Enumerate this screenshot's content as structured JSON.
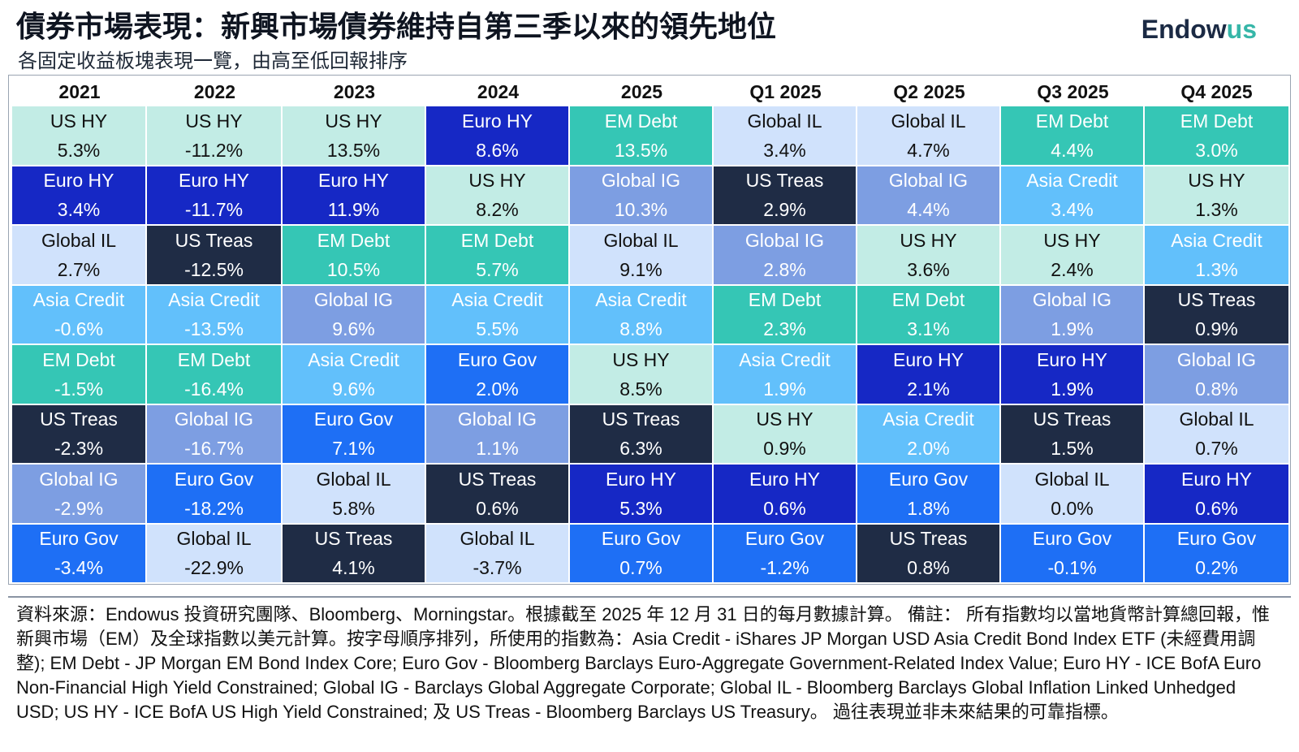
{
  "header": {
    "title": "債券市場表現：新興市場債券維持自第三季以來的領先地位",
    "subtitle": "各固定收益板塊表現一覽，由高至低回報排序",
    "logo_main": "Endow",
    "logo_accent": "us"
  },
  "colors": {
    "US HY": {
      "bg": "#c2ece5",
      "fg": "#111111"
    },
    "Euro HY": {
      "bg": "#1628c5",
      "fg": "#ffffff"
    },
    "Global IL": {
      "bg": "#d0e2fc",
      "fg": "#111111"
    },
    "Asia Credit": {
      "bg": "#62c0fb",
      "fg": "#ffffff"
    },
    "EM Debt": {
      "bg": "#35c6b5",
      "fg": "#ffffff"
    },
    "US Treas": {
      "bg": "#1f2c45",
      "fg": "#ffffff"
    },
    "Global IG": {
      "bg": "#7d9ee2",
      "fg": "#ffffff"
    },
    "Euro Gov": {
      "bg": "#1e6ff5",
      "fg": "#ffffff"
    }
  },
  "chart_data": {
    "type": "table",
    "title": "債券市場表現：新興市場債券維持自第三季以來的領先地位",
    "subtitle": "各固定收益板塊表現一覽，由高至低回報排序",
    "columns": [
      "2021",
      "2022",
      "2023",
      "2024",
      "2025",
      "Q1 2025",
      "Q2 2025",
      "Q3 2025",
      "Q4 2025"
    ],
    "series": [
      {
        "name": "2021",
        "cells": [
          {
            "label": "US HY",
            "value": "5.3%"
          },
          {
            "label": "Euro HY",
            "value": "3.4%"
          },
          {
            "label": "Global IL",
            "value": "2.7%"
          },
          {
            "label": "Asia Credit",
            "value": "-0.6%"
          },
          {
            "label": "EM Debt",
            "value": "-1.5%"
          },
          {
            "label": "US Treas",
            "value": "-2.3%"
          },
          {
            "label": "Global IG",
            "value": "-2.9%"
          },
          {
            "label": "Euro Gov",
            "value": "-3.4%"
          }
        ]
      },
      {
        "name": "2022",
        "cells": [
          {
            "label": "US HY",
            "value": "-11.2%"
          },
          {
            "label": "Euro HY",
            "value": "-11.7%"
          },
          {
            "label": "US Treas",
            "value": "-12.5%"
          },
          {
            "label": "Asia Credit",
            "value": "-13.5%"
          },
          {
            "label": "EM Debt",
            "value": "-16.4%"
          },
          {
            "label": "Global IG",
            "value": "-16.7%"
          },
          {
            "label": "Euro Gov",
            "value": "-18.2%"
          },
          {
            "label": "Global IL",
            "value": "-22.9%"
          }
        ]
      },
      {
        "name": "2023",
        "cells": [
          {
            "label": "US HY",
            "value": "13.5%"
          },
          {
            "label": "Euro HY",
            "value": "11.9%"
          },
          {
            "label": "EM Debt",
            "value": "10.5%"
          },
          {
            "label": "Global IG",
            "value": "9.6%"
          },
          {
            "label": "Asia Credit",
            "value": "9.6%"
          },
          {
            "label": "Euro Gov",
            "value": "7.1%"
          },
          {
            "label": "Global IL",
            "value": "5.8%"
          },
          {
            "label": "US Treas",
            "value": "4.1%"
          }
        ]
      },
      {
        "name": "2024",
        "cells": [
          {
            "label": "Euro HY",
            "value": "8.6%"
          },
          {
            "label": "US HY",
            "value": "8.2%"
          },
          {
            "label": "EM Debt",
            "value": "5.7%"
          },
          {
            "label": "Asia Credit",
            "value": "5.5%"
          },
          {
            "label": "Euro Gov",
            "value": "2.0%"
          },
          {
            "label": "Global IG",
            "value": "1.1%"
          },
          {
            "label": "US Treas",
            "value": "0.6%"
          },
          {
            "label": "Global IL",
            "value": "-3.7%"
          }
        ]
      },
      {
        "name": "2025",
        "cells": [
          {
            "label": "EM Debt",
            "value": "13.5%"
          },
          {
            "label": "Global IG",
            "value": "10.3%"
          },
          {
            "label": "Global IL",
            "value": "9.1%"
          },
          {
            "label": "Asia Credit",
            "value": "8.8%"
          },
          {
            "label": "US HY",
            "value": "8.5%"
          },
          {
            "label": "US Treas",
            "value": "6.3%"
          },
          {
            "label": "Euro HY",
            "value": "5.3%"
          },
          {
            "label": "Euro Gov",
            "value": "0.7%"
          }
        ]
      },
      {
        "name": "Q1 2025",
        "cells": [
          {
            "label": "Global IL",
            "value": "3.4%"
          },
          {
            "label": "US Treas",
            "value": "2.9%"
          },
          {
            "label": "Global IG",
            "value": "2.8%"
          },
          {
            "label": "EM Debt",
            "value": "2.3%"
          },
          {
            "label": "Asia Credit",
            "value": "1.9%"
          },
          {
            "label": "US HY",
            "value": "0.9%"
          },
          {
            "label": "Euro HY",
            "value": "0.6%"
          },
          {
            "label": "Euro Gov",
            "value": "-1.2%"
          }
        ]
      },
      {
        "name": "Q2 2025",
        "cells": [
          {
            "label": "Global IL",
            "value": "4.7%"
          },
          {
            "label": "Global IG",
            "value": "4.4%"
          },
          {
            "label": "US HY",
            "value": "3.6%"
          },
          {
            "label": "EM Debt",
            "value": "3.1%"
          },
          {
            "label": "Euro HY",
            "value": "2.1%"
          },
          {
            "label": "Asia Credit",
            "value": "2.0%"
          },
          {
            "label": "Euro Gov",
            "value": "1.8%"
          },
          {
            "label": "US Treas",
            "value": "0.8%"
          }
        ]
      },
      {
        "name": "Q3 2025",
        "cells": [
          {
            "label": "EM Debt",
            "value": "4.4%"
          },
          {
            "label": "Asia Credit",
            "value": "3.4%"
          },
          {
            "label": "US HY",
            "value": "2.4%"
          },
          {
            "label": "Global IG",
            "value": "1.9%"
          },
          {
            "label": "Euro HY",
            "value": "1.9%"
          },
          {
            "label": "US Treas",
            "value": "1.5%"
          },
          {
            "label": "Global IL",
            "value": "0.0%"
          },
          {
            "label": "Euro Gov",
            "value": "-0.1%"
          }
        ]
      },
      {
        "name": "Q4 2025",
        "cells": [
          {
            "label": "EM Debt",
            "value": "3.0%"
          },
          {
            "label": "US HY",
            "value": "1.3%"
          },
          {
            "label": "Asia Credit",
            "value": "1.3%"
          },
          {
            "label": "US Treas",
            "value": "0.9%"
          },
          {
            "label": "Global IG",
            "value": "0.8%"
          },
          {
            "label": "Global IL",
            "value": "0.7%"
          },
          {
            "label": "Euro HY",
            "value": "0.6%"
          },
          {
            "label": "Euro Gov",
            "value": "0.2%"
          }
        ]
      }
    ]
  },
  "footer": {
    "text": "資料來源：Endowus 投資研究團隊、Bloomberg、Morningstar。根據截至 2025 年 12 月 31 日的每月數據計算。 備註： 所有指數均以當地貨幣計算總回報，惟新興市場（EM）及全球指數以美元計算。按字母順序排列，所使用的指數為：Asia Credit - iShares JP Morgan USD Asia Credit Bond Index ETF (未經費用調整); EM Debt - JP Morgan EM Bond Index Core; Euro Gov - Bloomberg Barclays Euro-Aggregate Government-Related Index Value; Euro HY - ICE BofA Euro Non-Financial High Yield Constrained; Global IG - Barclays Global Aggregate Corporate; Global IL - Bloomberg Barclays Global Inflation Linked Unhedged USD; US HY - ICE BofA US High Yield Constrained; 及 US Treas - Bloomberg Barclays US Treasury。 過往表現並非未來結果的可靠指標。"
  }
}
